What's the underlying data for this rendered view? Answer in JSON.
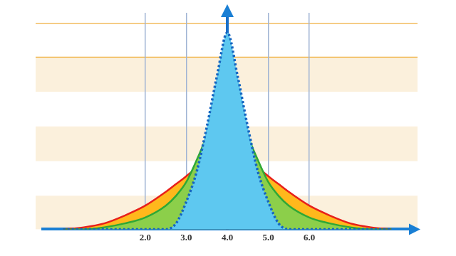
{
  "chart_data": {
    "type": "line",
    "x": [
      0,
      0.5,
      1,
      1.5,
      2,
      2.5,
      2.75,
      3,
      3.25,
      3.5,
      3.75,
      4,
      4.25,
      4.5,
      4.75,
      5,
      5.25,
      5.5,
      6,
      6.5,
      7,
      7.5,
      8
    ],
    "xlim": [
      -0.5,
      8.5
    ],
    "xticks": [
      {
        "value": 2,
        "label": "2.0"
      },
      {
        "value": 3,
        "label": "3.0"
      },
      {
        "value": 4,
        "label": "4.0"
      },
      {
        "value": 5,
        "label": "5.0"
      },
      {
        "value": 6,
        "label": "6.0"
      }
    ],
    "ylim": [
      0,
      1.1
    ],
    "grid": true,
    "tick_labels": "x",
    "series": [
      {
        "color": "#e8201a",
        "line_style": "solid",
        "values": [
          0,
          0.01,
          0.03,
          0.07,
          0.12,
          0.19,
          0.23,
          0.27,
          0.32,
          0.42,
          0.6,
          0.8,
          0.6,
          0.42,
          0.32,
          0.27,
          0.23,
          0.19,
          0.12,
          0.07,
          0.03,
          0.01,
          0
        ]
      },
      {
        "color": "#2fa836",
        "line_style": "solid",
        "values": [
          0,
          0,
          0.01,
          0.03,
          0.06,
          0.12,
          0.17,
          0.24,
          0.35,
          0.48,
          0.68,
          0.9,
          0.68,
          0.48,
          0.35,
          0.24,
          0.17,
          0.12,
          0.06,
          0.03,
          0.01,
          0,
          0
        ]
      },
      {
        "color": "#1565c0",
        "line_style": "dotted",
        "values": [
          0,
          0,
          0,
          0,
          0,
          0,
          0.03,
          0.14,
          0.29,
          0.52,
          0.78,
          1.0,
          0.78,
          0.52,
          0.29,
          0.14,
          0.03,
          0,
          0,
          0,
          0,
          0,
          0
        ]
      }
    ]
  }
}
